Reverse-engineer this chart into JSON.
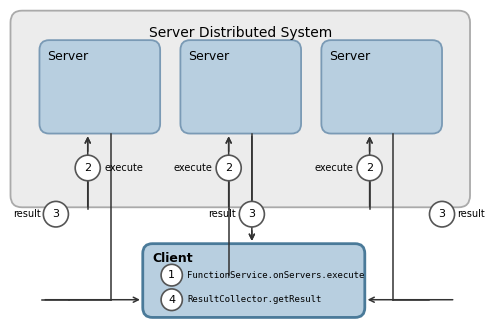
{
  "title": "Server Distributed System",
  "bg_outer": "#ececec",
  "bg_server_box": "#b8cfe0",
  "bg_client_box": "#b8cfe0",
  "outer_edge": "#aaaaaa",
  "server_edge": "#7a9ab5",
  "client_edge": "#4a7a99",
  "circle_fill": "#ffffff",
  "circle_edge": "#555555",
  "text_color": "#000000",
  "arrow_color": "#333333",
  "servers": [
    "Server",
    "Server",
    "Server"
  ],
  "step1_text": "FunctionService.onServers.execute",
  "step4_text": "ResultCollector.getResult",
  "figw": 4.92,
  "figh": 3.32,
  "dpi": 100
}
